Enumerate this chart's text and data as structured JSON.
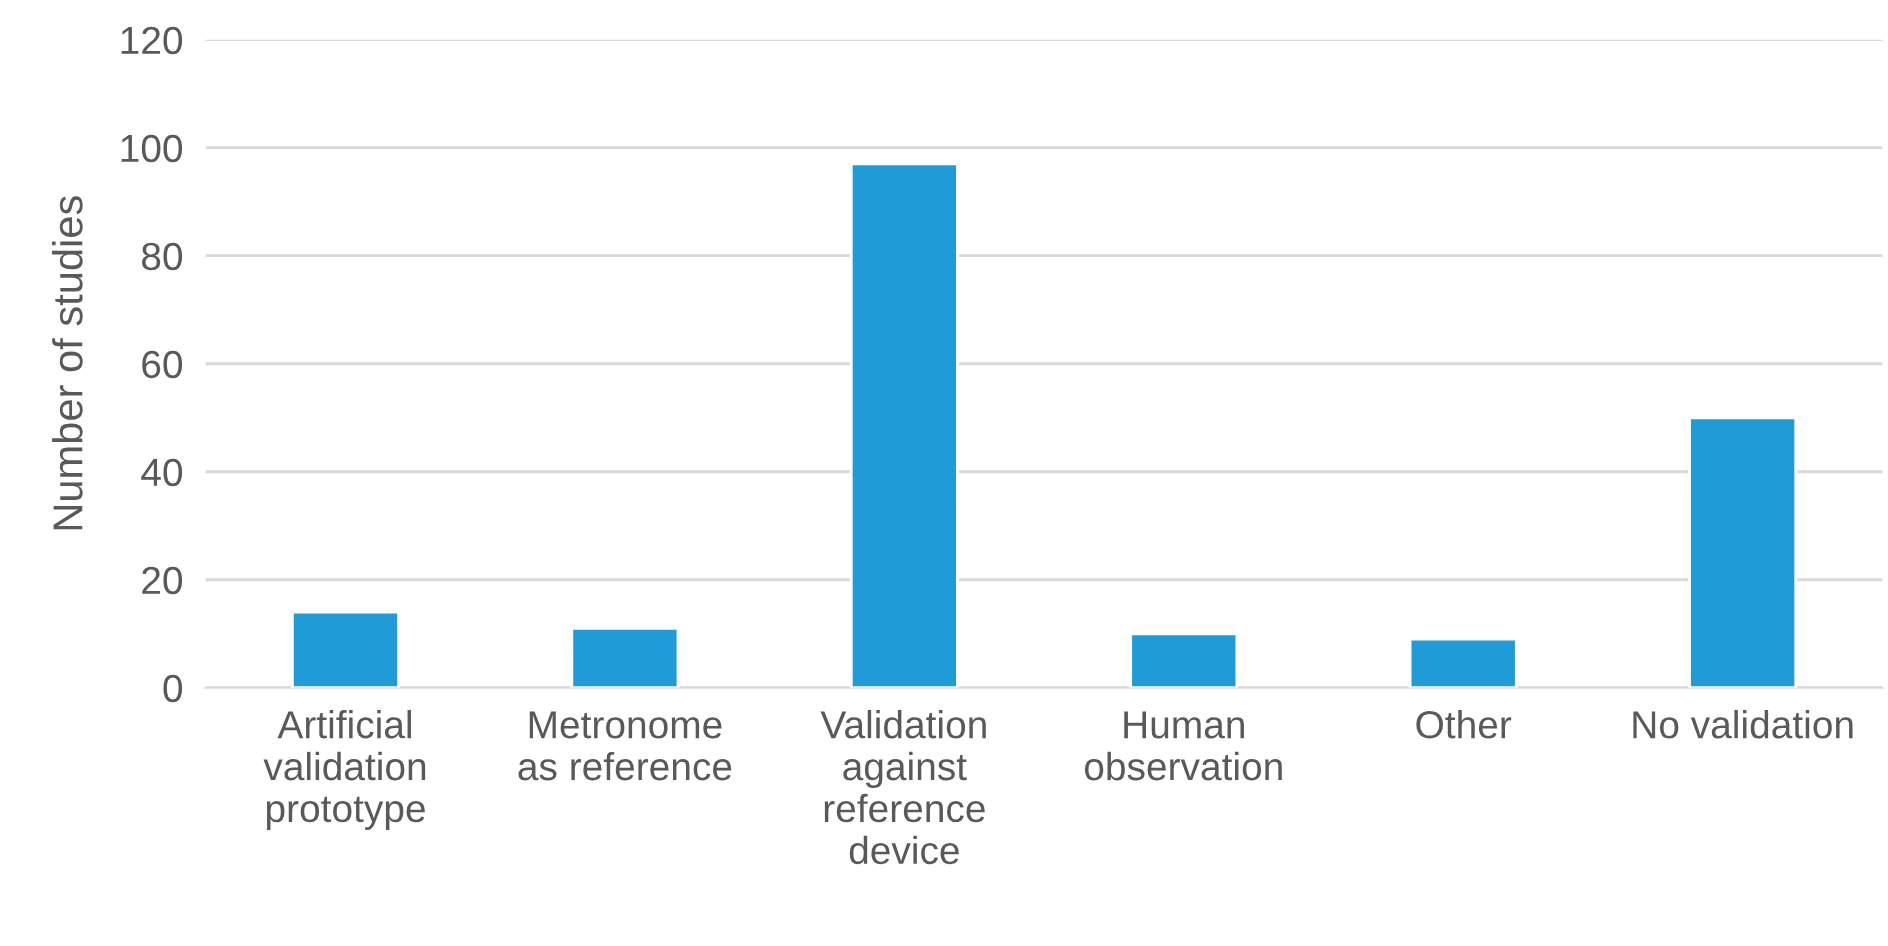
{
  "chart_data": {
    "type": "bar",
    "ylabel": "Number of studies",
    "categories": [
      "Artificial\nvalidation\nprototype",
      "Metronome\nas reference",
      "Validation\nagainst\nreference\ndevice",
      "Human\nobservation",
      "Other",
      "No validation"
    ],
    "values": [
      14,
      11,
      97,
      10,
      9,
      50
    ],
    "color": "#1f9bd8",
    "ylim": [
      0,
      120
    ],
    "yticks": [
      0,
      20,
      40,
      60,
      80,
      100,
      120
    ],
    "grid": "y",
    "legend": false
  }
}
